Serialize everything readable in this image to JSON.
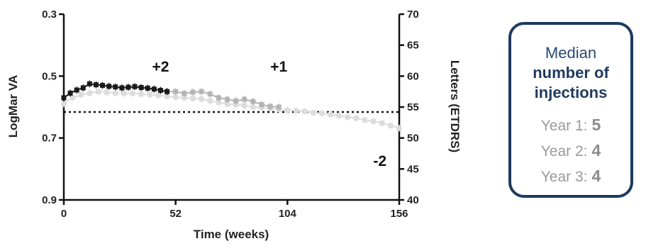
{
  "chart_data": {
    "type": "line",
    "xlabel": "Time (weeks)",
    "ylabel_left": "LogMar VA",
    "ylabel_right": "Letters (ETDRS)",
    "x_ticks": [
      "0",
      "52",
      "104",
      "156"
    ],
    "x_range": [
      0,
      156
    ],
    "y_left_ticks": [
      "0.3",
      "0.5",
      "0.7",
      "0.9"
    ],
    "y_left_range": [
      0.3,
      0.9
    ],
    "y_left_inverted": true,
    "y_right_ticks": [
      "40",
      "45",
      "50",
      "55",
      "60",
      "65",
      "70"
    ],
    "y_right_range": [
      40,
      70
    ],
    "reference_line": {
      "value": 0.616,
      "style": "dotted"
    },
    "annotations": [
      {
        "text": "+2",
        "x": 45,
        "y": 0.485
      },
      {
        "text": "+1",
        "x": 100,
        "y": 0.485
      },
      {
        "text": "-2",
        "x": 147,
        "y": 0.79
      }
    ],
    "series": [
      {
        "color": "#1a1a1a",
        "x": [
          0,
          3,
          6,
          9,
          12,
          15,
          18,
          21,
          24,
          27,
          30,
          33,
          36,
          39,
          42,
          45,
          48
        ],
        "y": [
          0.57,
          0.555,
          0.545,
          0.538,
          0.525,
          0.528,
          0.53,
          0.533,
          0.535,
          0.538,
          0.536,
          0.534,
          0.537,
          0.539,
          0.542,
          0.546,
          0.55
        ]
      },
      {
        "color": "#b4b4b4",
        "x": [
          48,
          52,
          56,
          60,
          64,
          68,
          72,
          76,
          80,
          84,
          88,
          92,
          96,
          100
        ],
        "y": [
          0.55,
          0.55,
          0.556,
          0.552,
          0.55,
          0.558,
          0.57,
          0.575,
          0.58,
          0.575,
          0.582,
          0.592,
          0.598,
          0.6
        ]
      },
      {
        "color": "#dcdcdc",
        "x": [
          0,
          4,
          8,
          12,
          16,
          20,
          24,
          28,
          32,
          36,
          40,
          44,
          48,
          52,
          56,
          60,
          64,
          68,
          72,
          76,
          80,
          84,
          88,
          92,
          96,
          100,
          104,
          108,
          112,
          116,
          120,
          124,
          128,
          132,
          136,
          140,
          144,
          148,
          152,
          156
        ],
        "y": [
          0.59,
          0.57,
          0.56,
          0.555,
          0.55,
          0.552,
          0.555,
          0.556,
          0.556,
          0.558,
          0.56,
          0.562,
          0.566,
          0.568,
          0.57,
          0.572,
          0.574,
          0.58,
          0.585,
          0.59,
          0.592,
          0.595,
          0.6,
          0.602,
          0.604,
          0.608,
          0.61,
          0.612,
          0.614,
          0.618,
          0.62,
          0.624,
          0.628,
          0.632,
          0.636,
          0.642,
          0.646,
          0.652,
          0.66,
          0.668
        ]
      }
    ]
  },
  "callout": {
    "title": "Median",
    "subtitle_line1": "number of",
    "subtitle_line2": "injections",
    "rows": [
      {
        "label": "Year 1:",
        "value": "5"
      },
      {
        "label": "Year 2:",
        "value": "4"
      },
      {
        "label": "Year 3:",
        "value": "4"
      }
    ]
  }
}
